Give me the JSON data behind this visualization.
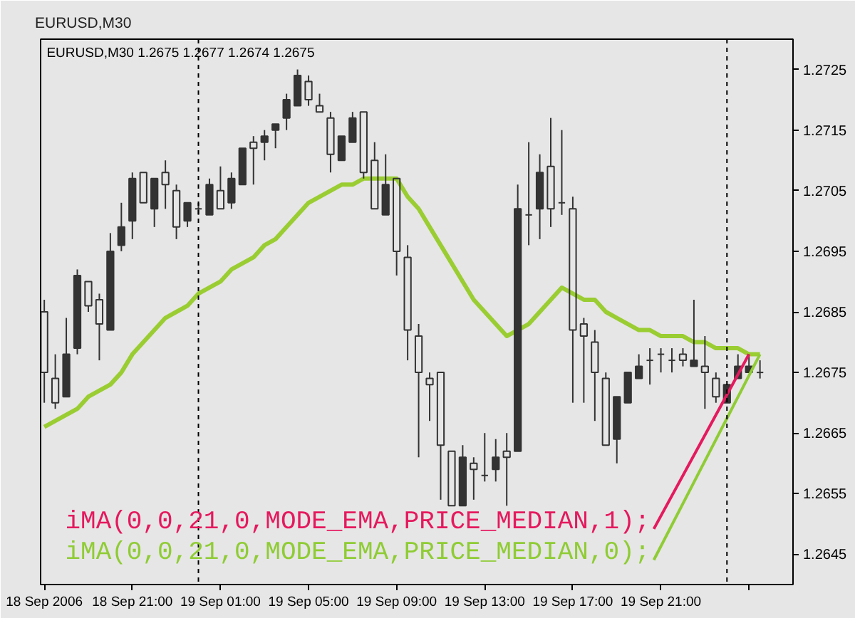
{
  "chart_data": {
    "type": "candlestick",
    "title": "EURUSD,M30",
    "subtitle": "EURUSD,M30 1.2675 1.2677 1.2674 1.2675",
    "x": [
      "2006-09-18T17:00",
      "2006-09-18T17:30",
      "2006-09-18T18:00",
      "2006-09-18T18:30",
      "2006-09-18T19:00",
      "2006-09-18T19:30",
      "2006-09-18T20:00",
      "2006-09-18T20:30",
      "2006-09-18T21:00",
      "2006-09-18T21:30",
      "2006-09-18T22:00",
      "2006-09-18T22:30",
      "2006-09-18T23:00",
      "2006-09-18T23:30",
      "2006-09-19T00:00",
      "2006-09-19T00:30",
      "2006-09-19T01:00",
      "2006-09-19T01:30",
      "2006-09-19T02:00",
      "2006-09-19T02:30",
      "2006-09-19T03:00",
      "2006-09-19T03:30",
      "2006-09-19T04:00",
      "2006-09-19T04:30",
      "2006-09-19T05:00",
      "2006-09-19T05:30",
      "2006-09-19T06:00",
      "2006-09-19T06:30",
      "2006-09-19T07:00",
      "2006-09-19T07:30",
      "2006-09-19T08:00",
      "2006-09-19T08:30",
      "2006-09-19T09:00",
      "2006-09-19T09:30",
      "2006-09-19T10:00",
      "2006-09-19T10:30",
      "2006-09-19T11:00",
      "2006-09-19T11:30",
      "2006-09-19T12:00",
      "2006-09-19T12:30",
      "2006-09-19T13:00",
      "2006-09-19T13:30",
      "2006-09-19T14:00",
      "2006-09-19T14:30",
      "2006-09-19T15:00",
      "2006-09-19T15:30",
      "2006-09-19T16:00",
      "2006-09-19T16:30",
      "2006-09-19T17:00",
      "2006-09-19T17:30",
      "2006-09-19T18:00",
      "2006-09-19T18:30",
      "2006-09-19T19:00",
      "2006-09-19T19:30",
      "2006-09-19T20:00",
      "2006-09-19T20:30",
      "2006-09-19T21:00",
      "2006-09-19T21:30",
      "2006-09-19T22:00",
      "2006-09-19T22:30",
      "2006-09-19T23:00",
      "2006-09-19T23:30",
      "2006-09-20T00:00",
      "2006-09-20T00:30",
      "2006-09-20T01:00",
      "2006-09-20T01:30"
    ],
    "ohlc": [
      [
        1.2685,
        1.2687,
        1.267,
        1.2675
      ],
      [
        1.2674,
        1.2678,
        1.2669,
        1.267
      ],
      [
        1.2671,
        1.2684,
        1.2671,
        1.2678
      ],
      [
        1.2679,
        1.2692,
        1.2678,
        1.2691
      ],
      [
        1.269,
        1.269,
        1.2685,
        1.2686
      ],
      [
        1.2687,
        1.2688,
        1.2677,
        1.2683
      ],
      [
        1.2682,
        1.2698,
        1.2682,
        1.2695
      ],
      [
        1.2696,
        1.2703,
        1.2695,
        1.2699
      ],
      [
        1.27,
        1.2708,
        1.2697,
        1.2707
      ],
      [
        1.2708,
        1.2708,
        1.2703,
        1.2703
      ],
      [
        1.2702,
        1.2707,
        1.2699,
        1.2707
      ],
      [
        1.2708,
        1.271,
        1.2702,
        1.2706
      ],
      [
        1.2705,
        1.2706,
        1.2697,
        1.2699
      ],
      [
        1.27,
        1.2703,
        1.2699,
        1.2703
      ],
      [
        1.2702,
        1.2703,
        1.2701,
        1.2702
      ],
      [
        1.2701,
        1.2707,
        1.2701,
        1.2706
      ],
      [
        1.2705,
        1.2709,
        1.2702,
        1.2702
      ],
      [
        1.2703,
        1.2708,
        1.2702,
        1.2707
      ],
      [
        1.2706,
        1.2712,
        1.2706,
        1.2712
      ],
      [
        1.2713,
        1.2714,
        1.2706,
        1.2712
      ],
      [
        1.2713,
        1.2715,
        1.271,
        1.2714
      ],
      [
        1.2715,
        1.2716,
        1.2712,
        1.2716
      ],
      [
        1.2717,
        1.2721,
        1.2715,
        1.272
      ],
      [
        1.2719,
        1.2725,
        1.2719,
        1.2724
      ],
      [
        1.2723,
        1.2724,
        1.2719,
        1.272
      ],
      [
        1.2719,
        1.2721,
        1.2718,
        1.2718
      ],
      [
        1.2717,
        1.2718,
        1.2708,
        1.2711
      ],
      [
        1.271,
        1.2714,
        1.271,
        1.2714
      ],
      [
        1.2713,
        1.2718,
        1.2713,
        1.2717
      ],
      [
        1.2718,
        1.2718,
        1.2707,
        1.2708
      ],
      [
        1.271,
        1.2713,
        1.2702,
        1.2702
      ],
      [
        1.2701,
        1.2711,
        1.2701,
        1.2706
      ],
      [
        1.2707,
        1.2707,
        1.2691,
        1.2695
      ],
      [
        1.2694,
        1.2696,
        1.2677,
        1.2682
      ],
      [
        1.2681,
        1.2683,
        1.2661,
        1.2675
      ],
      [
        1.2674,
        1.2675,
        1.2667,
        1.2673
      ],
      [
        1.2675,
        1.2675,
        1.2654,
        1.2663
      ],
      [
        1.2662,
        1.2662,
        1.2653,
        1.2653
      ],
      [
        1.2653,
        1.2663,
        1.2653,
        1.2661
      ],
      [
        1.266,
        1.2661,
        1.2654,
        1.2659
      ],
      [
        1.2658,
        1.2665,
        1.2657,
        1.2658
      ],
      [
        1.2659,
        1.2664,
        1.2657,
        1.2661
      ],
      [
        1.2662,
        1.2665,
        1.2653,
        1.2661
      ],
      [
        1.2662,
        1.2706,
        1.2662,
        1.2702
      ],
      [
        1.2701,
        1.2713,
        1.2696,
        1.2701
      ],
      [
        1.2702,
        1.2711,
        1.2697,
        1.2708
      ],
      [
        1.2709,
        1.2717,
        1.2699,
        1.2702
      ],
      [
        1.2703,
        1.2715,
        1.2701,
        1.2703
      ],
      [
        1.2702,
        1.2704,
        1.267,
        1.2682
      ],
      [
        1.2683,
        1.2684,
        1.267,
        1.2681
      ],
      [
        1.268,
        1.2682,
        1.2667,
        1.2675
      ],
      [
        1.2674,
        1.2675,
        1.2663,
        1.2663
      ],
      [
        1.2664,
        1.2671,
        1.266,
        1.2671
      ],
      [
        1.267,
        1.2675,
        1.267,
        1.2675
      ],
      [
        1.2674,
        1.2678,
        1.2674,
        1.2676
      ],
      [
        1.2677,
        1.2679,
        1.2673,
        1.2677
      ],
      [
        1.2678,
        1.2679,
        1.2675,
        1.2678
      ],
      [
        1.2677,
        1.2679,
        1.2675,
        1.2677
      ],
      [
        1.2678,
        1.2679,
        1.2676,
        1.2677
      ],
      [
        1.2676,
        1.2687,
        1.2676,
        1.2677
      ],
      [
        1.2676,
        1.2681,
        1.2669,
        1.2675
      ],
      [
        1.2674,
        1.2675,
        1.267,
        1.2671
      ],
      [
        1.267,
        1.2673,
        1.267,
        1.2673
      ],
      [
        1.2674,
        1.2678,
        1.2674,
        1.2676
      ],
      [
        1.2675,
        1.2678,
        1.2675,
        1.2676
      ],
      [
        1.2675,
        1.2677,
        1.2674,
        1.2675
      ]
    ],
    "color": "#333333",
    "series": [
      {
        "type": "line",
        "color": "#9acd32",
        "values": [
          1.2666,
          1.2667,
          1.2668,
          1.2669,
          1.2671,
          1.2672,
          1.2673,
          1.2675,
          1.2678,
          1.268,
          1.2682,
          1.2684,
          1.2685,
          1.2686,
          1.2688,
          1.2689,
          1.269,
          1.2692,
          1.2693,
          1.2694,
          1.2696,
          1.2697,
          1.2699,
          1.2701,
          1.2703,
          1.2704,
          1.2705,
          1.2706,
          1.2706,
          1.2707,
          1.2707,
          1.2707,
          1.2707,
          1.2704,
          1.2702,
          1.2699,
          1.2696,
          1.2693,
          1.269,
          1.2687,
          1.2685,
          1.2683,
          1.2681,
          1.2682,
          1.2683,
          1.2685,
          1.2687,
          1.2689,
          1.2688,
          1.2687,
          1.2687,
          1.2685,
          1.2684,
          1.2683,
          1.2682,
          1.2682,
          1.2681,
          1.2681,
          1.2681,
          1.268,
          1.268,
          1.2679,
          1.2679,
          1.2679,
          1.2678,
          1.2678
        ]
      }
    ],
    "xlim": [
      "2006-09-18T16:50",
      "2006-09-20T03:00"
    ],
    "ylim": [
      1.264,
      1.273
    ],
    "xticks": [
      {
        "value": "2006-09-18T17:00",
        "label": "18 Sep 2006"
      },
      {
        "value": "2006-09-18T21:00",
        "label": "18 Sep 21:00"
      },
      {
        "value": "2006-09-19T01:00",
        "label": "19 Sep 01:00"
      },
      {
        "value": "2006-09-19T05:00",
        "label": "19 Sep 05:00"
      },
      {
        "value": "2006-09-19T09:00",
        "label": "19 Sep 09:00"
      },
      {
        "value": "2006-09-19T13:00",
        "label": "19 Sep 13:00"
      },
      {
        "value": "2006-09-19T17:00",
        "label": "19 Sep 17:00"
      },
      {
        "value": "2006-09-19T21:00",
        "label": "19 Sep 21:00"
      },
      {
        "value": "2006-09-20T01:00",
        "label": null
      }
    ],
    "yticks": [
      1.2645,
      1.2655,
      1.2665,
      1.2675,
      1.2685,
      1.2695,
      1.2705,
      1.2715,
      1.2725
    ],
    "ref_lines": [
      {
        "axis": "x",
        "value": "2006-09-19T00:00",
        "color": "#000000",
        "line_style": "dashed"
      },
      {
        "axis": "x",
        "value": "2006-09-20T00:00",
        "color": "#000000",
        "line_style": "dashed"
      }
    ],
    "annotations": [
      {
        "text": "iMA(0,0,21,0,MODE_EMA,PRICE_MEDIAN,1);",
        "x": "2006-09-20T01:00",
        "y": 1.2678
      },
      {
        "text": "iMA(0,0,21,0,MODE_EMA,PRICE_MEDIAN,0);",
        "x": "2006-09-20T01:30",
        "y": 1.2678
      }
    ]
  }
}
